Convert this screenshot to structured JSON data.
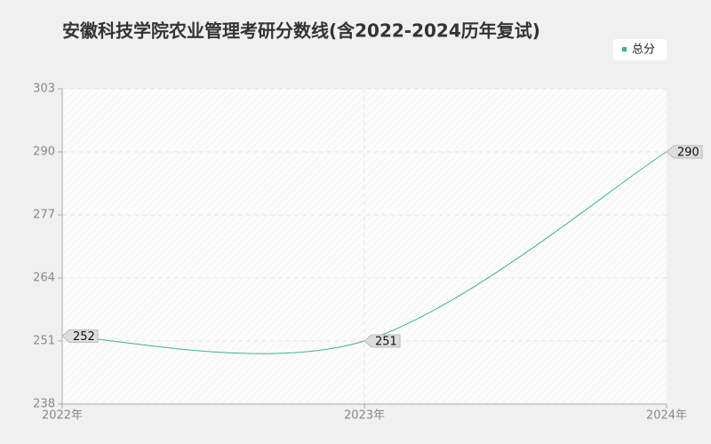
{
  "chart_data": {
    "type": "line",
    "title": "安徽科技学院农业管理考研分数线(含2022-2024历年复试)",
    "categories": [
      "2022年",
      "2023年",
      "2024年"
    ],
    "series": [
      {
        "name": "总分",
        "color": "#3cb38a",
        "values": [
          252,
          251,
          290
        ]
      }
    ],
    "ylim": [
      238,
      303
    ],
    "yticks": [
      238,
      251,
      264,
      277,
      290,
      303
    ],
    "grid": true,
    "legend": "top-right"
  }
}
